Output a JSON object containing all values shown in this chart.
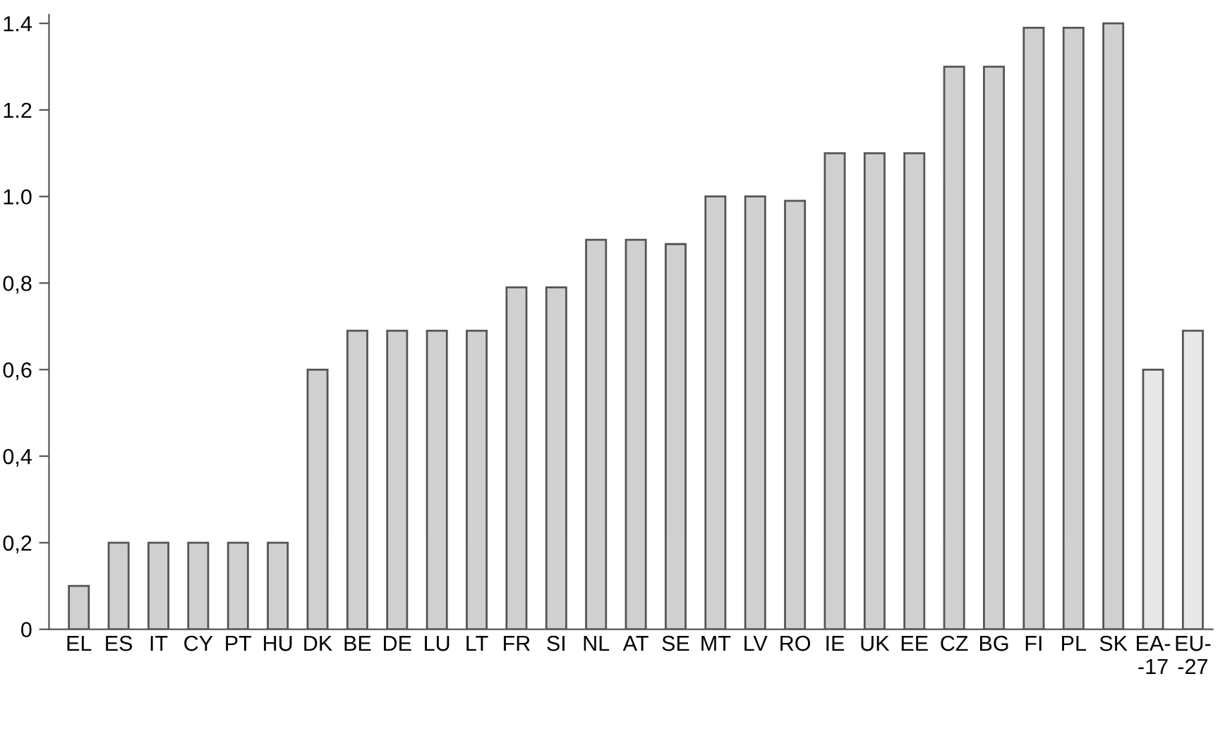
{
  "chart_data": {
    "type": "bar",
    "categories": [
      "EL",
      "ES",
      "IT",
      "CY",
      "PT",
      "HU",
      "DK",
      "BE",
      "DE",
      "LU",
      "LT",
      "FR",
      "SI",
      "NL",
      "AT",
      "SE",
      "MT",
      "LV",
      "RO",
      "IE",
      "UK",
      "EE",
      "CZ",
      "BG",
      "FI",
      "PL",
      "SK",
      "EA-\n-17",
      "EU-\n-27"
    ],
    "values": [
      0.1,
      0.2,
      0.2,
      0.2,
      0.2,
      0.2,
      0.6,
      0.69,
      0.69,
      0.69,
      0.69,
      0.79,
      0.79,
      0.9,
      0.9,
      0.89,
      1.0,
      1.0,
      0.99,
      1.1,
      1.1,
      1.1,
      1.3,
      1.3,
      1.39,
      1.39,
      1.4,
      0.6,
      0.69
    ],
    "colors": [
      "#d0d0d0",
      "#d0d0d0",
      "#d0d0d0",
      "#d0d0d0",
      "#d0d0d0",
      "#d0d0d0",
      "#d0d0d0",
      "#d0d0d0",
      "#d0d0d0",
      "#d0d0d0",
      "#d0d0d0",
      "#d0d0d0",
      "#d0d0d0",
      "#d0d0d0",
      "#d0d0d0",
      "#d0d0d0",
      "#d0d0d0",
      "#d0d0d0",
      "#d0d0d0",
      "#d0d0d0",
      "#d0d0d0",
      "#d0d0d0",
      "#d0d0d0",
      "#d0d0d0",
      "#d0d0d0",
      "#d0d0d0",
      "#d0d0d0",
      "#e8e8e8",
      "#e8e8e8"
    ],
    "ylim": [
      0,
      1.42
    ],
    "yticks": [
      {
        "value": 0,
        "label": "0"
      },
      {
        "value": 0.2,
        "label": "0,2"
      },
      {
        "value": 0.4,
        "label": "0,4"
      },
      {
        "value": 0.6,
        "label": "0,6"
      },
      {
        "value": 0.8,
        "label": "0,8"
      },
      {
        "value": 1.0,
        "label": "1.0"
      },
      {
        "value": 1.2,
        "label": "1.2"
      },
      {
        "value": 1.4,
        "label": "1.4"
      }
    ],
    "grid": false
  }
}
